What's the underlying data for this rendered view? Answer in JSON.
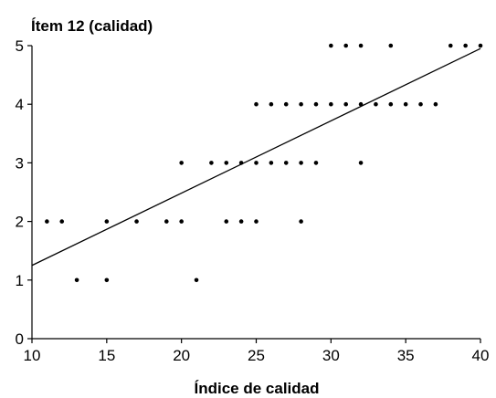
{
  "chart_data": {
    "type": "scatter",
    "title": "",
    "ylabel": "Ítem 12 (calidad)",
    "xlabel": "Índice de calidad",
    "xlim": [
      10,
      40
    ],
    "ylim": [
      0,
      5
    ],
    "x_ticks": [
      10,
      15,
      20,
      25,
      30,
      35,
      40
    ],
    "y_ticks": [
      0,
      1,
      2,
      3,
      4,
      5
    ],
    "grid": false,
    "legend": "none",
    "colors": {
      "points": "#000000",
      "line": "#000000",
      "axis": "#000000"
    },
    "points": [
      {
        "x": 11,
        "y": 2
      },
      {
        "x": 12,
        "y": 2
      },
      {
        "x": 13,
        "y": 1
      },
      {
        "x": 15,
        "y": 1
      },
      {
        "x": 15,
        "y": 2
      },
      {
        "x": 17,
        "y": 2
      },
      {
        "x": 19,
        "y": 2
      },
      {
        "x": 20,
        "y": 2
      },
      {
        "x": 20,
        "y": 3
      },
      {
        "x": 21,
        "y": 1
      },
      {
        "x": 22,
        "y": 3
      },
      {
        "x": 23,
        "y": 2
      },
      {
        "x": 23,
        "y": 3
      },
      {
        "x": 24,
        "y": 2
      },
      {
        "x": 24,
        "y": 3
      },
      {
        "x": 25,
        "y": 2
      },
      {
        "x": 25,
        "y": 3
      },
      {
        "x": 25,
        "y": 4
      },
      {
        "x": 26,
        "y": 3
      },
      {
        "x": 26,
        "y": 4
      },
      {
        "x": 27,
        "y": 3
      },
      {
        "x": 27,
        "y": 4
      },
      {
        "x": 28,
        "y": 2
      },
      {
        "x": 28,
        "y": 3
      },
      {
        "x": 28,
        "y": 4
      },
      {
        "x": 29,
        "y": 3
      },
      {
        "x": 29,
        "y": 4
      },
      {
        "x": 30,
        "y": 4
      },
      {
        "x": 30,
        "y": 5
      },
      {
        "x": 31,
        "y": 4
      },
      {
        "x": 31,
        "y": 5
      },
      {
        "x": 32,
        "y": 3
      },
      {
        "x": 32,
        "y": 4
      },
      {
        "x": 32,
        "y": 5
      },
      {
        "x": 33,
        "y": 4
      },
      {
        "x": 34,
        "y": 4
      },
      {
        "x": 34,
        "y": 5
      },
      {
        "x": 35,
        "y": 4
      },
      {
        "x": 36,
        "y": 4
      },
      {
        "x": 37,
        "y": 4
      },
      {
        "x": 38,
        "y": 5
      },
      {
        "x": 39,
        "y": 5
      },
      {
        "x": 40,
        "y": 5
      }
    ],
    "trendline": {
      "x": [
        10,
        40
      ],
      "y": [
        1.25,
        4.95
      ]
    }
  }
}
